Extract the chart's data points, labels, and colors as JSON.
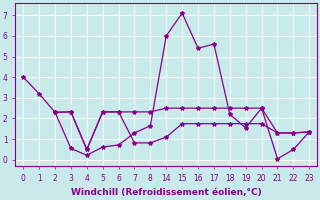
{
  "background_color": "#c8eaea",
  "line_color": "#8b008b",
  "grid_color": "#ffffff",
  "line_width": 0.9,
  "marker": "*",
  "marker_size": 3,
  "xlabel": "Windchill (Refroidissement éolien,°C)",
  "xlabel_fontsize": 6.5,
  "tick_fontsize": 5.5,
  "tick_color": "#8b008b",
  "xtick_labels": [
    "0",
    "1",
    "2",
    "3",
    "4",
    "5",
    "6",
    "7",
    "8",
    "14",
    "15",
    "16",
    "17",
    "18",
    "19",
    "20",
    "21",
    "22",
    "23"
  ],
  "yticks": [
    0,
    1,
    2,
    3,
    4,
    5,
    6,
    7
  ],
  "ylim": [
    -0.3,
    7.6
  ],
  "lines": [
    {
      "xi": [
        0,
        1,
        2,
        3,
        4,
        5,
        6,
        7,
        8,
        9,
        10,
        11,
        12,
        13,
        14,
        15,
        16,
        17,
        18
      ],
      "y": [
        4.0,
        3.2,
        2.3,
        0.55,
        0.22,
        0.62,
        0.72,
        1.3,
        1.65,
        6.0,
        7.1,
        5.4,
        5.6,
        2.2,
        1.55,
        2.5,
        0.05,
        0.5,
        1.35
      ]
    },
    {
      "xi": [
        2,
        3,
        4,
        5,
        6,
        7,
        8,
        9,
        10,
        11,
        12,
        13,
        14,
        15,
        16,
        17,
        18
      ],
      "y": [
        2.3,
        2.32,
        0.5,
        2.32,
        2.32,
        2.32,
        2.32,
        2.5,
        2.5,
        2.5,
        2.5,
        2.5,
        2.5,
        2.5,
        1.3,
        1.3,
        1.35
      ]
    },
    {
      "xi": [
        2,
        3,
        4,
        5,
        6,
        7,
        8,
        9,
        10,
        11,
        12,
        13,
        14,
        15,
        16,
        17,
        18
      ],
      "y": [
        2.3,
        2.32,
        0.5,
        2.32,
        2.32,
        0.82,
        0.82,
        1.1,
        1.75,
        1.75,
        1.75,
        1.75,
        1.75,
        1.75,
        1.3,
        1.3,
        1.35
      ]
    }
  ]
}
